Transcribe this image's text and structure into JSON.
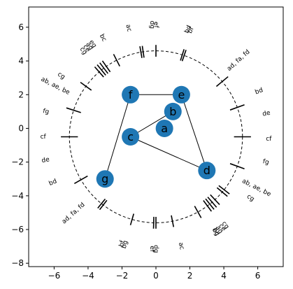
{
  "chart_data": {
    "type": "scatter",
    "xlim": [
      -7.5,
      7.5
    ],
    "ylim": [
      -8.2,
      7.2
    ],
    "xticks": [
      -6,
      -4,
      -2,
      0,
      2,
      4,
      6
    ],
    "yticks": [
      -8,
      -6,
      -4,
      -2,
      0,
      2,
      4,
      6
    ],
    "grid": false,
    "colors": {
      "node": "#1f77b4",
      "edge": "#000000",
      "axis": "#000000",
      "circle": "#000000"
    },
    "circle": {
      "center": [
        0,
        -0.5
      ],
      "radius": 5.1,
      "style": "dashed"
    },
    "nodes": [
      {
        "name": "a",
        "x": 0.5,
        "y": 0.0
      },
      {
        "name": "b",
        "x": 1.0,
        "y": 1.0
      },
      {
        "name": "e",
        "x": 1.5,
        "y": 2.0
      },
      {
        "name": "f",
        "x": -1.5,
        "y": 2.0
      },
      {
        "name": "c",
        "x": -1.5,
        "y": -0.5
      },
      {
        "name": "d",
        "x": 3.0,
        "y": -2.5
      },
      {
        "name": "g",
        "x": -3.0,
        "y": -3.0
      }
    ],
    "edges": [
      [
        "f",
        "e"
      ],
      [
        "e",
        "d"
      ],
      [
        "d",
        "c"
      ],
      [
        "c",
        "b"
      ],
      [
        "f",
        "g"
      ]
    ],
    "ring_marks": [
      {
        "angle": 90,
        "span": 0.7
      },
      {
        "angle": 71,
        "span": 0.7
      },
      {
        "angle": 72.3,
        "span": 0.7
      },
      {
        "angle": 40,
        "span": 0.9
      },
      {
        "angle": 20,
        "span": 0.9
      },
      {
        "angle": 0,
        "span": 1.0
      },
      {
        "angle": -20,
        "span": 0.9
      },
      {
        "angle": -38,
        "span": 0.8
      },
      {
        "angle": -40,
        "span": 0.8
      },
      {
        "angle": -47,
        "span": 0.8
      },
      {
        "angle": -49.5,
        "span": 0.8
      },
      {
        "angle": -51.5,
        "span": 0.8
      },
      {
        "angle": -53.5,
        "span": 0.8
      },
      {
        "angle": -61,
        "span": 0.8
      },
      {
        "angle": -79,
        "span": 0.7
      },
      {
        "angle": -90,
        "span": 0.7
      },
      {
        "angle": -91.5,
        "span": 0.7
      },
      {
        "angle": -106,
        "span": 0.7
      },
      {
        "angle": -129,
        "span": 0.7
      },
      {
        "angle": -127.5,
        "span": 0.7
      },
      {
        "angle": -150,
        "span": 0.9
      },
      {
        "angle": -180,
        "span": 1.0
      },
      {
        "angle": 162,
        "span": 0.9
      },
      {
        "angle": 144,
        "span": 0.8
      },
      {
        "angle": 131,
        "span": 0.8
      },
      {
        "angle": 129,
        "span": 0.8
      },
      {
        "angle": 127,
        "span": 0.8
      },
      {
        "angle": 125,
        "span": 0.8
      },
      {
        "angle": 117,
        "span": 0.8
      },
      {
        "angle": 100,
        "span": 0.7
      },
      {
        "angle": 98.5,
        "span": 0.7
      }
    ],
    "ring_labels": [
      {
        "text": "bf",
        "angle": 72,
        "rot": -66
      },
      {
        "text": "bd",
        "angle": 73.5,
        "rot": -66
      },
      {
        "text": "ad, fa, fd",
        "angle": 43,
        "rot": -42
      },
      {
        "text": "bd",
        "angle": 24,
        "rot": -20
      },
      {
        "text": "de",
        "angle": 12,
        "rot": -12
      },
      {
        "text": "cf",
        "angle": -1,
        "rot": 0
      },
      {
        "text": "fg",
        "angle": -13,
        "rot": 12
      },
      {
        "text": "ab, ae, be",
        "angle": -27,
        "rot": 27
      },
      {
        "text": "cg",
        "angle": -33,
        "rot": 33
      },
      {
        "text": "bc",
        "angle": -58,
        "rot": 62
      },
      {
        "text": "ac",
        "angle": -77,
        "rot": 77
      },
      {
        "text": "cg",
        "angle": -52,
        "rot": 52
      },
      {
        "text": "ce",
        "angle": -54,
        "rot": 54
      },
      {
        "text": "ag",
        "angle": -56,
        "rot": 56
      },
      {
        "text": "eg",
        "angle": -58,
        "rot": 58
      },
      {
        "text": "dg",
        "angle": -90,
        "rot": 90
      },
      {
        "text": "ef",
        "angle": -92,
        "rot": 90
      },
      {
        "text": "bg",
        "angle": -106,
        "rot": -75
      },
      {
        "text": "bf",
        "angle": -107.5,
        "rot": -75
      },
      {
        "text": "ad, fa, fd",
        "angle": -137,
        "rot": -42
      },
      {
        "text": "bd",
        "angle": -156,
        "rot": -24
      },
      {
        "text": "de",
        "angle": -168,
        "rot": -12
      },
      {
        "text": "cf",
        "angle": 180,
        "rot": 0
      },
      {
        "text": "fg",
        "angle": 167,
        "rot": 12
      },
      {
        "text": "ab, ae, be",
        "angle": 153,
        "rot": 27
      },
      {
        "text": "cg",
        "angle": 147,
        "rot": 33
      },
      {
        "text": "ce",
        "angle": 128,
        "rot": 55
      },
      {
        "text": "ag",
        "angle": 126,
        "rot": 55
      },
      {
        "text": "eg",
        "angle": 124,
        "rot": 55
      },
      {
        "text": "cg",
        "angle": 130,
        "rot": 55
      },
      {
        "text": "bc",
        "angle": 118,
        "rot": 62
      },
      {
        "text": "ac",
        "angle": 104,
        "rot": 75
      },
      {
        "text": "dg",
        "angle": 92,
        "rot": 90
      },
      {
        "text": "ef",
        "angle": 90,
        "rot": 90
      }
    ]
  }
}
